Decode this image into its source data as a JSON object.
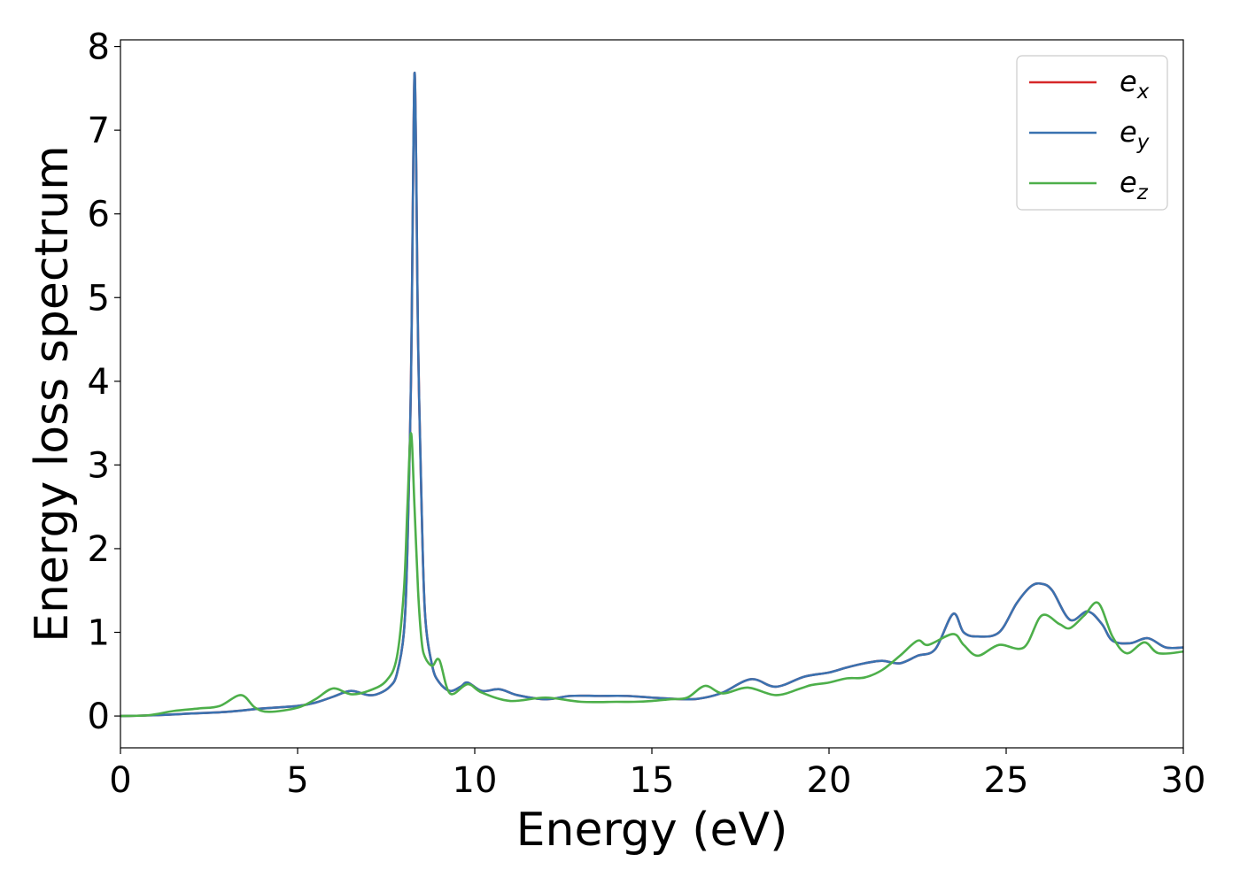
{
  "chart_data": {
    "type": "line",
    "xlabel": "Energy (eV)",
    "ylabel": "Energy loss spectrum",
    "xlim": [
      0,
      30
    ],
    "ylim": [
      -0.38,
      8.08
    ],
    "xticks": [
      0,
      5,
      10,
      15,
      20,
      25,
      30
    ],
    "yticks": [
      0,
      1,
      2,
      3,
      4,
      5,
      6,
      7,
      8
    ],
    "grid": false,
    "legend": "top-right",
    "series": [
      {
        "name": "e_x",
        "label_base": "e",
        "label_sub": "x",
        "color": "#d62728",
        "x": [
          0,
          1,
          2,
          3,
          4,
          5,
          5.5,
          6,
          6.5,
          7,
          7.3,
          7.6,
          7.8,
          8.0,
          8.1,
          8.2,
          8.25,
          8.3,
          8.35,
          8.4,
          8.5,
          8.6,
          8.8,
          9.0,
          9.3,
          9.6,
          9.8,
          10.2,
          10.7,
          11.2,
          12,
          12.7,
          13.5,
          14.3,
          15,
          16,
          16.5,
          17,
          17.8,
          18.5,
          19.3,
          20,
          20.5,
          21,
          21.5,
          22,
          22.5,
          23,
          23.5,
          23.8,
          24.2,
          24.8,
          25.3,
          25.7,
          26,
          26.3,
          26.8,
          27.3,
          27.7,
          28,
          28.5,
          29,
          29.5,
          30
        ],
        "y": [
          0,
          0.01,
          0.03,
          0.05,
          0.09,
          0.12,
          0.16,
          0.23,
          0.3,
          0.25,
          0.27,
          0.35,
          0.5,
          1.0,
          2.0,
          4.0,
          6.0,
          7.68,
          6.5,
          4.5,
          2.5,
          1.2,
          0.6,
          0.4,
          0.3,
          0.35,
          0.4,
          0.3,
          0.32,
          0.25,
          0.2,
          0.24,
          0.24,
          0.24,
          0.22,
          0.2,
          0.22,
          0.28,
          0.44,
          0.35,
          0.47,
          0.52,
          0.58,
          0.63,
          0.66,
          0.63,
          0.72,
          0.8,
          1.22,
          1.0,
          0.95,
          1.0,
          1.35,
          1.55,
          1.58,
          1.5,
          1.15,
          1.25,
          1.1,
          0.9,
          0.87,
          0.93,
          0.82,
          0.82
        ]
      },
      {
        "name": "e_y",
        "label_base": "e",
        "label_sub": "y",
        "color": "#3a72b0",
        "x": [
          0,
          1,
          2,
          3,
          4,
          5,
          5.5,
          6,
          6.5,
          7,
          7.3,
          7.6,
          7.8,
          8.0,
          8.1,
          8.2,
          8.25,
          8.3,
          8.35,
          8.4,
          8.5,
          8.6,
          8.8,
          9.0,
          9.3,
          9.6,
          9.8,
          10.2,
          10.7,
          11.2,
          12,
          12.7,
          13.5,
          14.3,
          15,
          16,
          16.5,
          17,
          17.8,
          18.5,
          19.3,
          20,
          20.5,
          21,
          21.5,
          22,
          22.5,
          23,
          23.5,
          23.8,
          24.2,
          24.8,
          25.3,
          25.7,
          26,
          26.3,
          26.8,
          27.3,
          27.7,
          28,
          28.5,
          29,
          29.5,
          30
        ],
        "y": [
          0,
          0.01,
          0.03,
          0.05,
          0.09,
          0.12,
          0.16,
          0.23,
          0.3,
          0.25,
          0.27,
          0.35,
          0.5,
          1.0,
          2.0,
          4.0,
          6.0,
          7.68,
          6.5,
          4.5,
          2.5,
          1.2,
          0.6,
          0.4,
          0.3,
          0.35,
          0.4,
          0.3,
          0.32,
          0.25,
          0.2,
          0.24,
          0.24,
          0.24,
          0.22,
          0.2,
          0.22,
          0.28,
          0.44,
          0.35,
          0.47,
          0.52,
          0.58,
          0.63,
          0.66,
          0.63,
          0.72,
          0.8,
          1.22,
          1.0,
          0.95,
          1.0,
          1.35,
          1.55,
          1.58,
          1.5,
          1.15,
          1.25,
          1.1,
          0.9,
          0.87,
          0.93,
          0.82,
          0.82
        ]
      },
      {
        "name": "e_z",
        "label_base": "e",
        "label_sub": "z",
        "color": "#4daf4a",
        "x": [
          0,
          0.8,
          1.5,
          2.2,
          2.8,
          3.4,
          3.8,
          4.2,
          5.0,
          5.5,
          6.0,
          6.5,
          7.0,
          7.5,
          7.8,
          8.0,
          8.1,
          8.2,
          8.3,
          8.4,
          8.5,
          8.6,
          8.8,
          9.0,
          9.3,
          9.8,
          10.2,
          11,
          12,
          13,
          14,
          14.5,
          15,
          15.5,
          16,
          16.5,
          17,
          17.7,
          18.5,
          19.2,
          19.5,
          20,
          20.5,
          21,
          21.5,
          22,
          22.5,
          22.8,
          23.5,
          23.8,
          24.2,
          24.8,
          25.5,
          26,
          26.5,
          26.8,
          27.2,
          27.6,
          28,
          28.4,
          28.9,
          29.3,
          30
        ],
        "y": [
          0,
          0.01,
          0.06,
          0.09,
          0.12,
          0.25,
          0.1,
          0.05,
          0.1,
          0.2,
          0.33,
          0.26,
          0.3,
          0.42,
          0.7,
          1.5,
          2.5,
          3.38,
          2.5,
          1.5,
          0.9,
          0.7,
          0.6,
          0.67,
          0.27,
          0.38,
          0.28,
          0.18,
          0.22,
          0.17,
          0.17,
          0.17,
          0.18,
          0.2,
          0.22,
          0.36,
          0.27,
          0.34,
          0.25,
          0.33,
          0.37,
          0.4,
          0.45,
          0.46,
          0.55,
          0.72,
          0.9,
          0.85,
          0.98,
          0.85,
          0.72,
          0.85,
          0.82,
          1.2,
          1.1,
          1.05,
          1.2,
          1.35,
          0.95,
          0.75,
          0.88,
          0.75,
          0.77
        ]
      }
    ]
  }
}
